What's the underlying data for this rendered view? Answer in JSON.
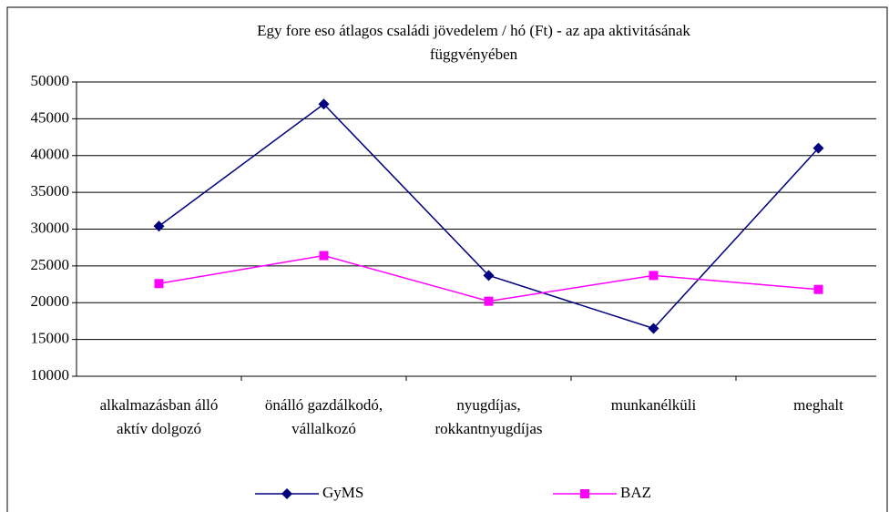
{
  "chart_data": {
    "type": "line",
    "title": [
      "Egy fore eso átlagos családi jövedelem / hó (Ft) - az apa aktivitásának",
      "függvényében"
    ],
    "categories": [
      [
        "alkalmazásban álló",
        "aktív dolgozó"
      ],
      [
        "önálló gazdálkodó,",
        "vállalkozó"
      ],
      [
        "nyugdíjas,",
        "rokkantnyugdíjas"
      ],
      [
        "munkanélküli"
      ],
      [
        "meghalt"
      ]
    ],
    "series": [
      {
        "name": "GyMS",
        "color": "#000080",
        "marker": "diamond",
        "values": [
          30400,
          47000,
          23700,
          16500,
          41000
        ]
      },
      {
        "name": "BAZ",
        "color": "#ff00ff",
        "marker": "square",
        "values": [
          22600,
          26400,
          20200,
          23700,
          21800
        ]
      }
    ],
    "ylim": [
      10000,
      50000
    ],
    "yticks": [
      10000,
      15000,
      20000,
      25000,
      30000,
      35000,
      40000,
      45000,
      50000
    ],
    "grid": true,
    "legend": "bottom"
  }
}
